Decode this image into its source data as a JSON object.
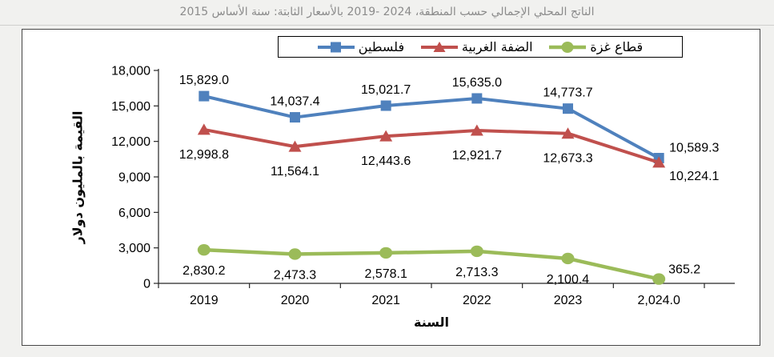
{
  "chart_data": {
    "type": "line",
    "title": "الناتج المحلي الإجمالي حسب المنطقة، ‪2019- 2024‬ بالأسعار الثابتة: سنة الأساس 2015",
    "categories": [
      "2019",
      "2020",
      "2021",
      "2022",
      "2023",
      "2,024.0"
    ],
    "xlabel": "السنة",
    "ylabel": "القيمة بالمليون دولار",
    "ylim": [
      0,
      18000
    ],
    "ytick_step": 3000,
    "ytick_labels": [
      "0",
      "3,000",
      "6,000",
      "9,000",
      "12,000",
      "15,000",
      "18,000"
    ],
    "grid": false,
    "legend_position": "top",
    "axis_color": "#262626",
    "series": [
      {
        "name": "فلسطين",
        "color": "#4F81BD",
        "marker": "square",
        "values": [
          15829.0,
          14037.4,
          15021.7,
          15635.0,
          14773.7,
          10589.3
        ],
        "labels": [
          "15,829.0",
          "14,037.4",
          "15,021.7",
          "15,635.0",
          "14,773.7",
          "10,589.3"
        ]
      },
      {
        "name": "الضفة الغربية",
        "color": "#C0504D",
        "marker": "triangle",
        "values": [
          12998.8,
          11564.1,
          12443.6,
          12921.7,
          12673.3,
          10224.1
        ],
        "labels": [
          "12,998.8",
          "11,564.1",
          "12,443.6",
          "12,921.7",
          "12,673.3",
          "10,224.1"
        ]
      },
      {
        "name": "قطاع غزة",
        "color": "#9BBB59",
        "marker": "circle",
        "values": [
          2830.2,
          2473.3,
          2578.1,
          2713.3,
          2100.4,
          365.2
        ],
        "labels": [
          "2,830.2",
          "2,473.3",
          "2,578.1",
          "2,713.3",
          "2,100.4",
          "365.2"
        ]
      }
    ]
  }
}
